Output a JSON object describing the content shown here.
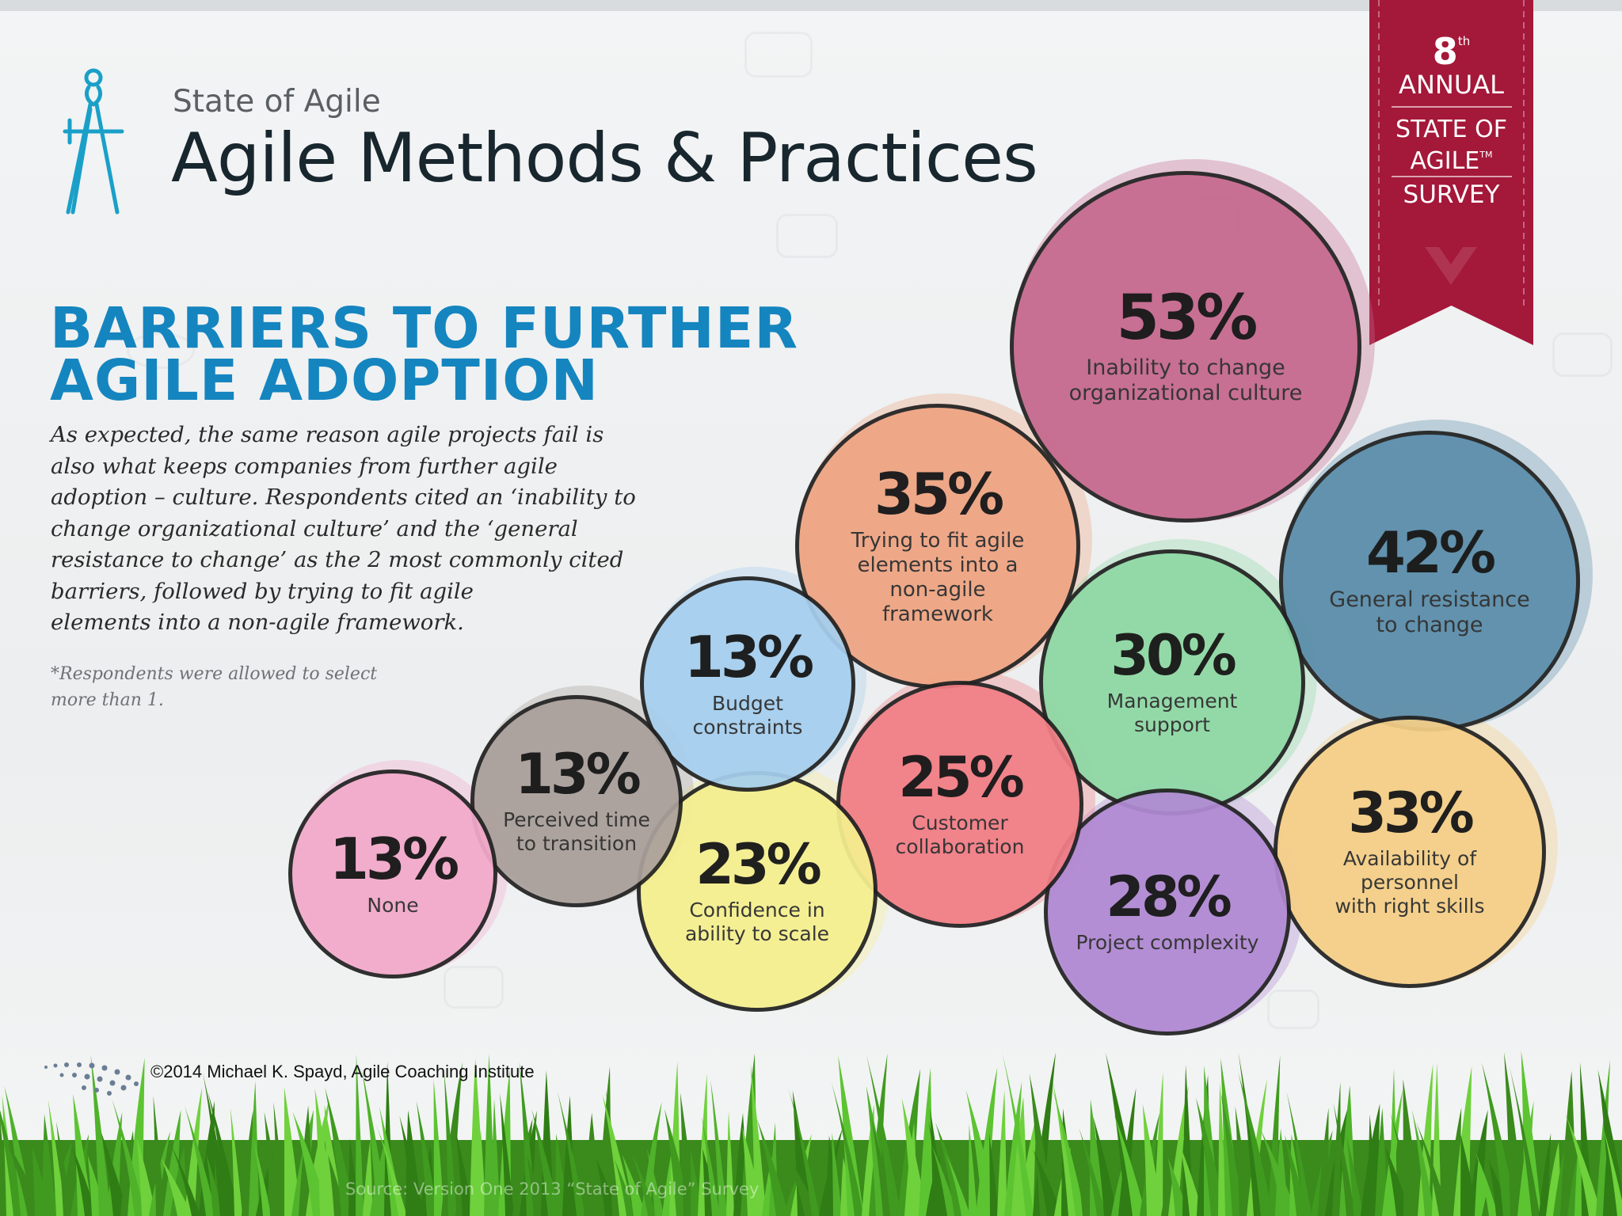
{
  "header": {
    "subtitle": "State of Agile",
    "title": "Agile Methods & Practices"
  },
  "banner": {
    "ordinal": "8",
    "ordinal_suffix": "th",
    "annual": "ANNUAL",
    "state_of_agile_line1": "STATE OF",
    "state_of_agile_line2": "AGILE",
    "trademark": "TM",
    "survey": "SURVEY",
    "color": "#a4183a"
  },
  "section": {
    "heading_line1": "BARRIERS TO FURTHER",
    "heading_line2": "AGILE ADOPTION",
    "body_lines": [
      "As expected, the same reason agile projects fail is",
      "also what keeps companies from further agile",
      "adoption – culture. Respondents cited an ‘inability to",
      "change organizational culture’ and the ‘general",
      "resistance to change’ as the 2 most commonly cited",
      "barriers, followed by trying to fit agile",
      "elements into a non-agile framework."
    ],
    "footnote_line1": "*Respondents were allowed to select",
    "footnote_line2": "more than 1."
  },
  "chart_data": {
    "type": "bubble",
    "title": "BARRIERS TO FURTHER AGILE ADOPTION",
    "unit": "%",
    "items": [
      {
        "label": "Inability to change\norganizational culture",
        "value": 53,
        "color": "#c66a8f"
      },
      {
        "label": "General resistance\nto change",
        "value": 42,
        "color": "#5c8eab"
      },
      {
        "label": "Trying to fit agile\nelements into a\nnon-agile\nframework",
        "value": 35,
        "color": "#efa584"
      },
      {
        "label": "Availability of\npersonnel\nwith right skills",
        "value": 33,
        "color": "#f5cf88"
      },
      {
        "label": "Management\nsupport",
        "value": 30,
        "color": "#8fd9a5"
      },
      {
        "label": "Project complexity",
        "value": 28,
        "color": "#b18ad3"
      },
      {
        "label": "Customer\ncollaboration",
        "value": 25,
        "color": "#f27e86"
      },
      {
        "label": "Confidence in\nability to scale",
        "value": 23,
        "color": "#f5ef8f"
      },
      {
        "label": "Budget\nconstraints",
        "value": 13,
        "color": "#a6cfee"
      },
      {
        "label": "Perceived time\nto transition",
        "value": 13,
        "color": "#aaa09b"
      },
      {
        "label": "None",
        "value": 13,
        "color": "#f3aacb"
      }
    ]
  },
  "footer": {
    "copyright": "©2014 Michael K. Spayd, Agile Coaching Institute",
    "source": "Source: Version One 2013 “State of Agile” Survey"
  }
}
